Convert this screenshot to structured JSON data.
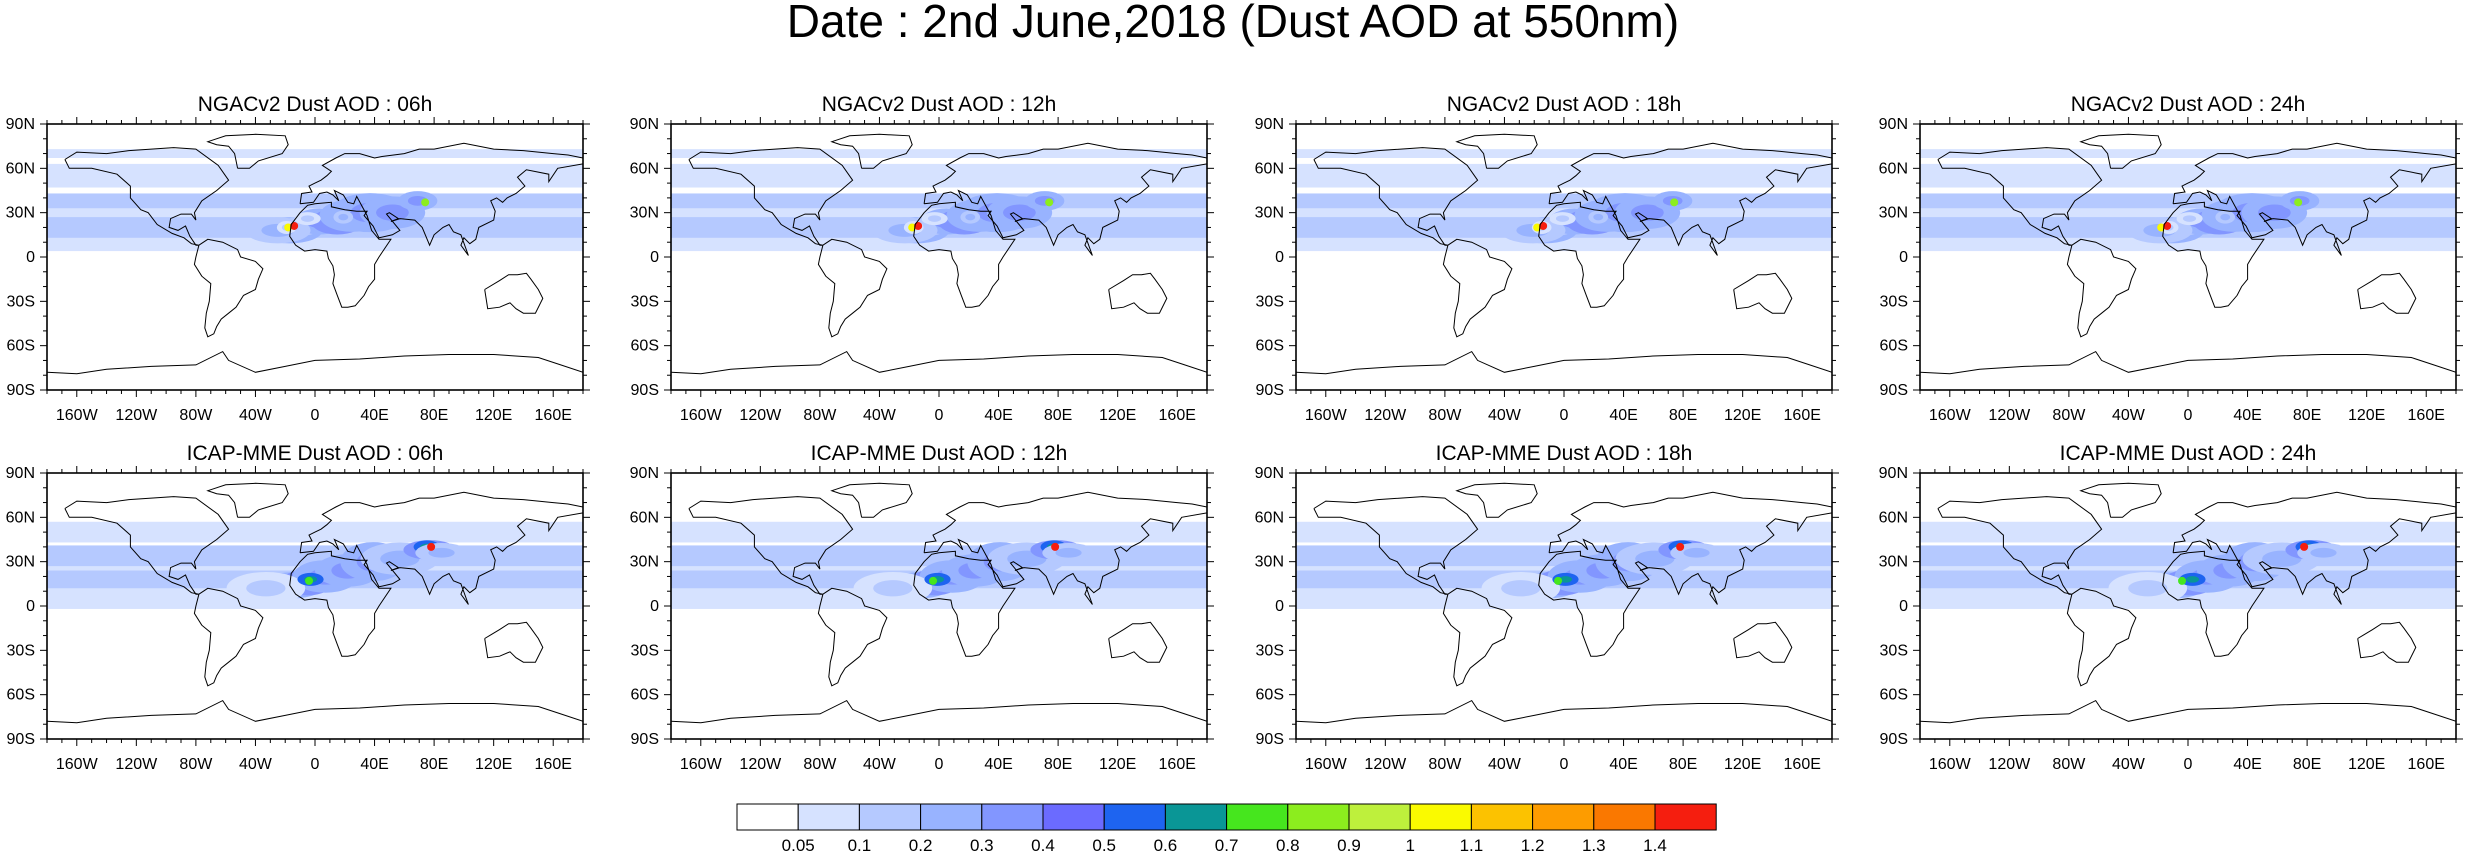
{
  "title": "Date : 2nd June,2018 (Dust AOD at 550nm)",
  "panels": [
    {
      "title": "NGACv2 Dust AOD : 06h",
      "model": "NGACv2",
      "hour": "06h"
    },
    {
      "title": "NGACv2 Dust AOD : 12h",
      "model": "NGACv2",
      "hour": "12h"
    },
    {
      "title": "NGACv2 Dust AOD : 18h",
      "model": "NGACv2",
      "hour": "18h"
    },
    {
      "title": "NGACv2 Dust AOD : 24h",
      "model": "NGACv2",
      "hour": "24h"
    },
    {
      "title": "ICAP-MME Dust AOD : 06h",
      "model": "ICAP-MME",
      "hour": "06h"
    },
    {
      "title": "ICAP-MME Dust AOD : 12h",
      "model": "ICAP-MME",
      "hour": "12h"
    },
    {
      "title": "ICAP-MME Dust AOD : 18h",
      "model": "ICAP-MME",
      "hour": "18h"
    },
    {
      "title": "ICAP-MME Dust AOD : 24h",
      "model": "ICAP-MME",
      "hour": "24h"
    }
  ],
  "lat_ticks": [
    "90N",
    "60N",
    "30N",
    "0",
    "30S",
    "60S",
    "90S"
  ],
  "lon_ticks": [
    "160W",
    "120W",
    "80W",
    "40W",
    "0",
    "40E",
    "80E",
    "120E",
    "160E"
  ],
  "colorbar": {
    "labels": [
      "0.05",
      "0.1",
      "0.2",
      "0.3",
      "0.4",
      "0.5",
      "0.6",
      "0.7",
      "0.8",
      "0.9",
      "1",
      "1.1",
      "1.2",
      "1.3",
      "1.4"
    ],
    "colors": [
      "#ffffff",
      "#d6e2ff",
      "#b5c9ff",
      "#98b3ff",
      "#8296ff",
      "#6b6bff",
      "#1e64f0",
      "#0a9696",
      "#46e61e",
      "#8ced1e",
      "#bef03c",
      "#fafa00",
      "#fcc200",
      "#fd9c00",
      "#fa7800",
      "#f51e0f"
    ]
  }
}
